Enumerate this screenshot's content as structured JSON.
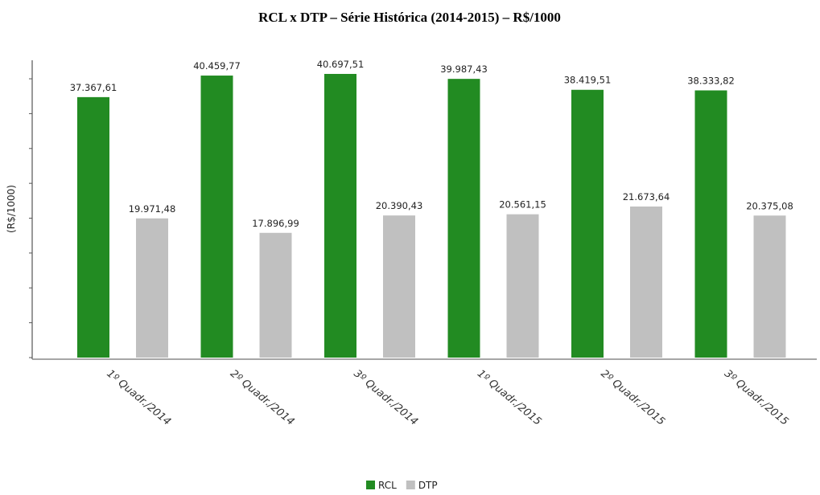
{
  "chart_data": {
    "type": "bar",
    "title": "RCL x DTP – Série Histórica (2014-2015) – R$/1000",
    "y_label": "(R$/1000)",
    "categories": [
      "1º Quadr./2014",
      "2º Quadr./2014",
      "3º Quadr./2014",
      "1º Quadr./2015",
      "2º Quadr./2015",
      "3º Quadr./2015"
    ],
    "series": [
      {
        "name": "RCL",
        "color": "#228b22",
        "values": [
          37367.61,
          40459.77,
          40697.51,
          39987.43,
          38419.51,
          38333.82
        ],
        "value_labels": [
          "37.367,61",
          "40.459,77",
          "40.697,51",
          "39.987,43",
          "38.419,51",
          "38.333,82"
        ]
      },
      {
        "name": "DTP",
        "color": "#c0c0c0",
        "values": [
          19971.48,
          17896.99,
          20390.43,
          20561.15,
          21673.64,
          20375.08
        ],
        "value_labels": [
          "19.971,48",
          "17.896,99",
          "20.390,43",
          "20.561,15",
          "21.673,64",
          "20.375,08"
        ]
      }
    ],
    "ylim": [
      0,
      42500
    ],
    "yticks": [
      0,
      5000,
      10000,
      15000,
      20000,
      25000,
      30000,
      35000,
      40000
    ],
    "legend": "bottom"
  }
}
